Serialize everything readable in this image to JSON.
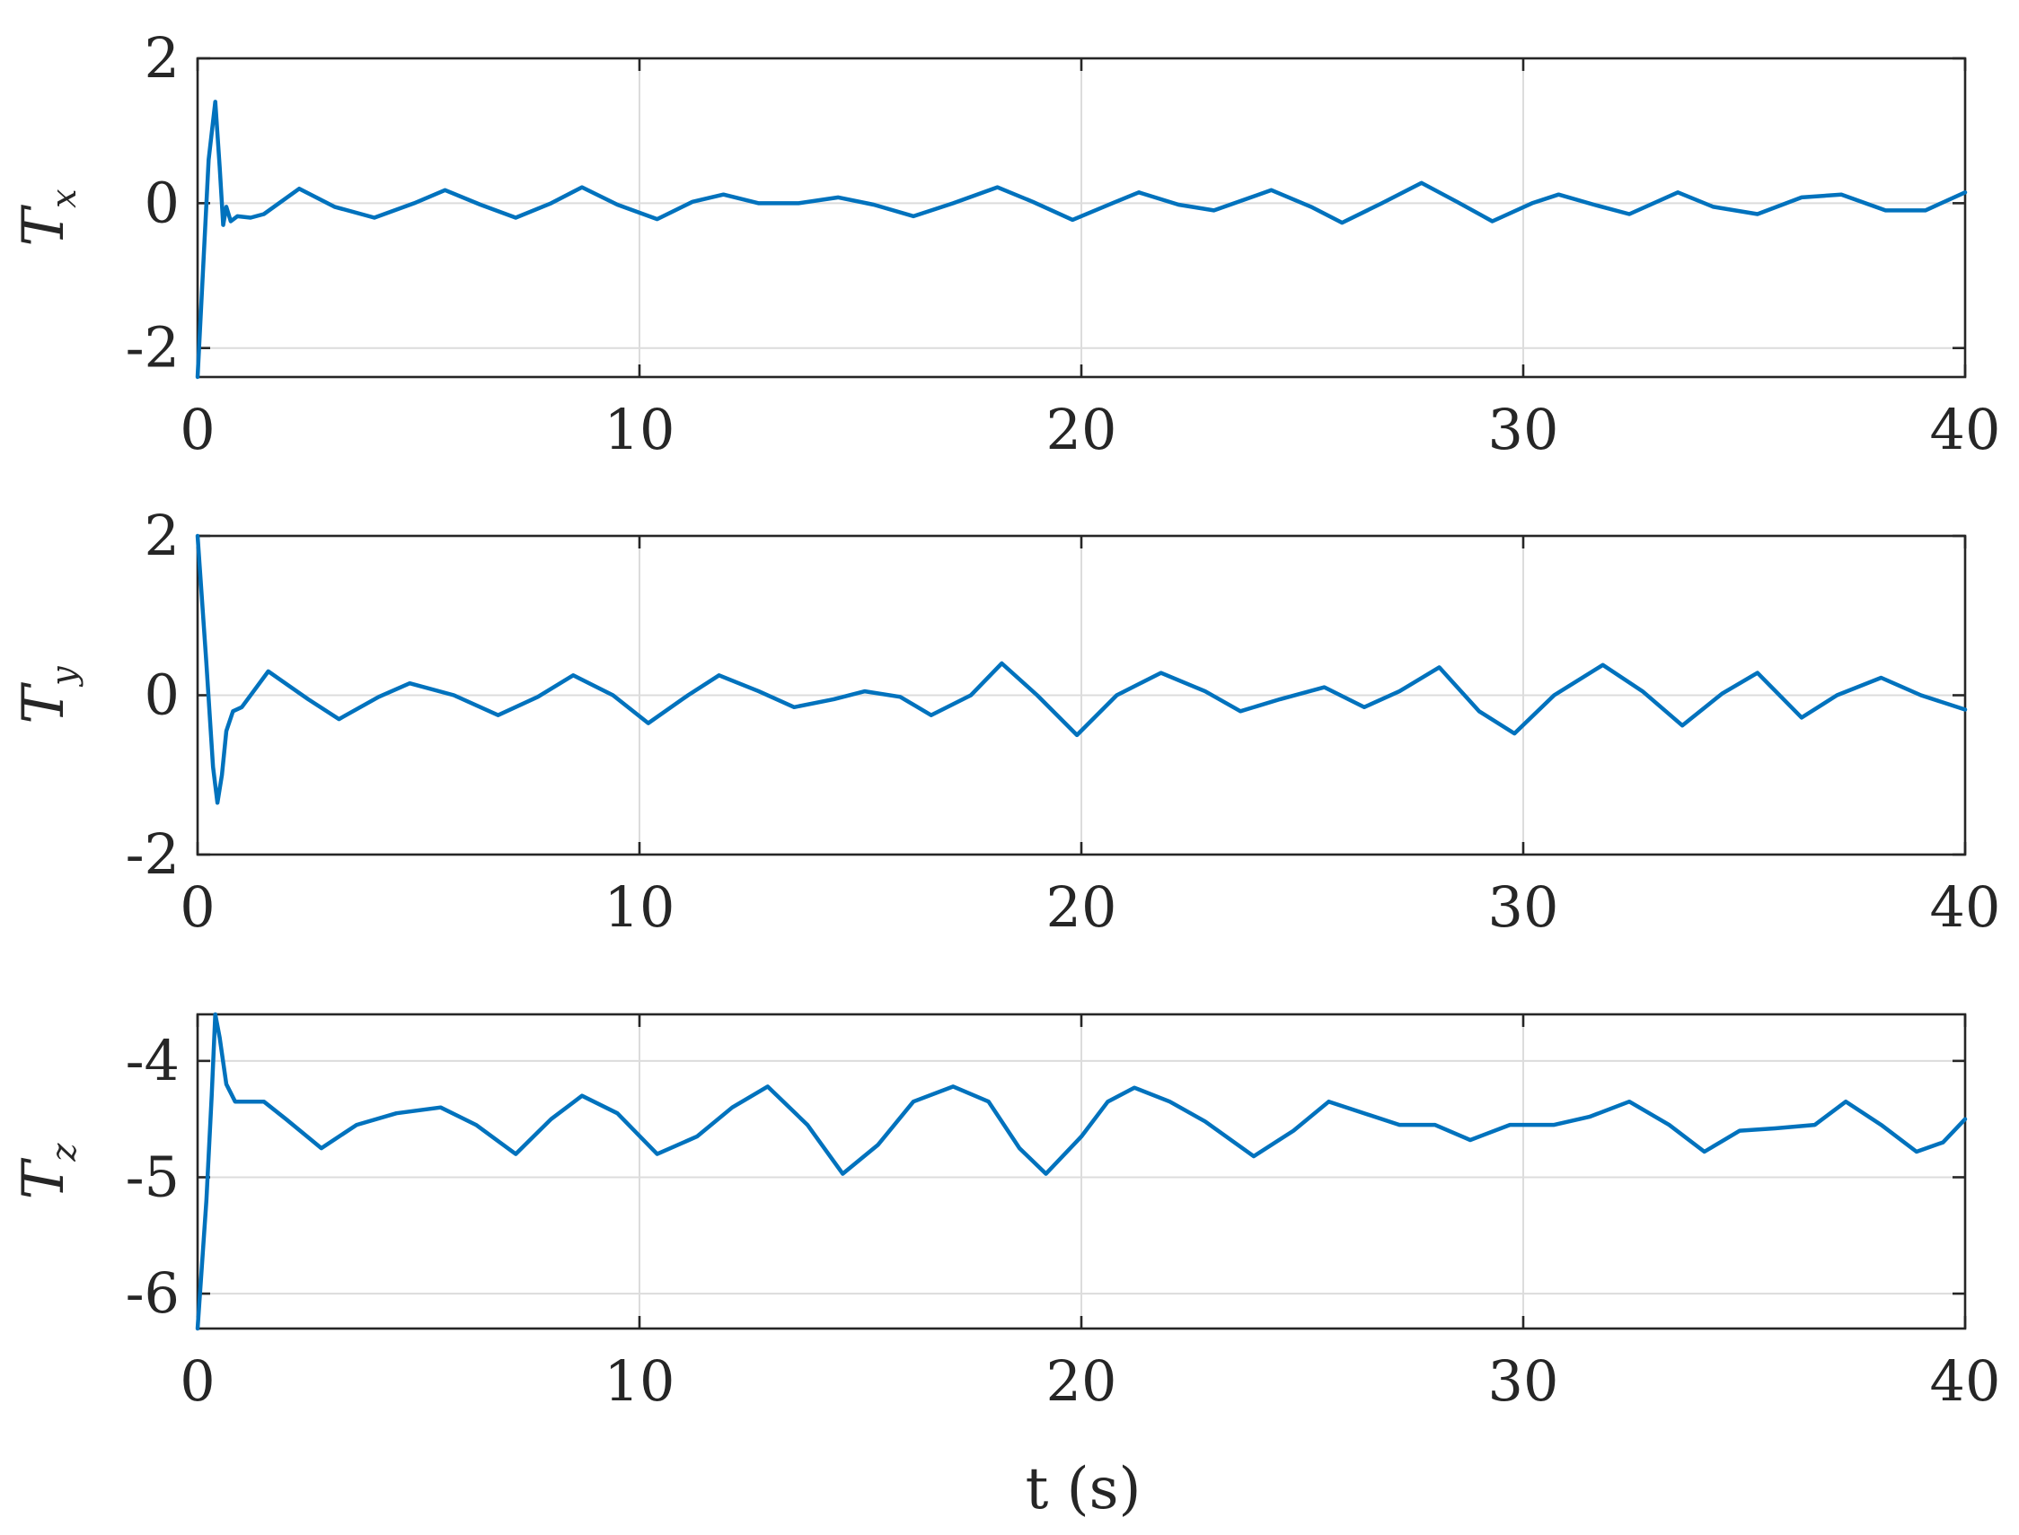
{
  "colors": {
    "series": "#0072bd",
    "axis": "#262626",
    "grid": "#dcdcdc"
  },
  "chart_data": [
    {
      "type": "line",
      "ylabel": {
        "main": "T",
        "sub": "x"
      },
      "xlabel": "",
      "xlim": [
        0,
        40
      ],
      "ylim": [
        -2.4,
        2
      ],
      "xticks": [
        0,
        10,
        20,
        30,
        40
      ],
      "xtick_labels": [
        "0",
        "10",
        "20",
        "30",
        "40"
      ],
      "yticks": [
        -2,
        0,
        2
      ],
      "ytick_labels": [
        "-2",
        "0",
        "2"
      ],
      "grid": true,
      "series": [
        {
          "x": [
            0,
            0.25,
            0.4,
            0.5,
            0.58,
            0.65,
            0.75,
            0.9,
            1.2,
            1.5,
            2.3,
            3.1,
            4.0,
            4.9,
            5.6,
            6.4,
            7.2,
            8.0,
            8.7,
            9.5,
            10.4,
            11.2,
            11.9,
            12.7,
            13.6,
            14.5,
            15.3,
            16.2,
            17.1,
            18.1,
            18.9,
            19.8,
            20.7,
            21.3,
            22.2,
            23.0,
            24.3,
            25.2,
            25.9,
            26.8,
            27.7,
            28.5,
            29.3,
            30.2,
            30.8,
            31.6,
            32.4,
            33.5,
            34.3,
            35.3,
            36.3,
            37.2,
            38.2,
            39.1,
            40.0
          ],
          "y": [
            -2.4,
            0.6,
            1.4,
            0.5,
            -0.3,
            -0.05,
            -0.25,
            -0.18,
            -0.2,
            -0.15,
            0.2,
            -0.05,
            -0.2,
            0.0,
            0.18,
            -0.02,
            -0.2,
            0.0,
            0.22,
            -0.02,
            -0.22,
            0.02,
            0.12,
            0.0,
            0.0,
            0.08,
            -0.02,
            -0.18,
            0.0,
            0.22,
            0.02,
            -0.23,
            0.0,
            0.15,
            -0.02,
            -0.1,
            0.18,
            -0.05,
            -0.27,
            0.0,
            0.28,
            0.02,
            -0.25,
            0.0,
            0.12,
            -0.02,
            -0.15,
            0.15,
            -0.05,
            -0.15,
            0.08,
            0.12,
            -0.1,
            -0.1,
            0.15
          ]
        }
      ]
    },
    {
      "type": "line",
      "ylabel": {
        "main": "T",
        "sub": "y"
      },
      "xlabel": "",
      "xlim": [
        0,
        40
      ],
      "ylim": [
        -2,
        2
      ],
      "xticks": [
        0,
        10,
        20,
        30,
        40
      ],
      "xtick_labels": [
        "0",
        "10",
        "20",
        "30",
        "40"
      ],
      "yticks": [
        -2,
        0,
        2
      ],
      "ytick_labels": [
        "-2",
        "0",
        "2"
      ],
      "grid": true,
      "series": [
        {
          "x": [
            0,
            0.2,
            0.35,
            0.45,
            0.55,
            0.65,
            0.8,
            1.0,
            1.6,
            2.5,
            3.2,
            4.1,
            4.8,
            5.8,
            6.8,
            7.7,
            8.5,
            9.4,
            10.2,
            11.1,
            11.8,
            12.7,
            13.5,
            14.4,
            15.1,
            15.9,
            16.6,
            17.5,
            18.2,
            19.0,
            19.9,
            20.8,
            21.8,
            22.8,
            23.6,
            24.5,
            25.5,
            26.4,
            27.2,
            28.1,
            29.0,
            29.8,
            30.7,
            31.8,
            32.7,
            33.6,
            34.5,
            35.3,
            36.3,
            37.1,
            38.1,
            39.0,
            40.0
          ],
          "y": [
            2.0,
            0.4,
            -0.9,
            -1.35,
            -1.0,
            -0.45,
            -0.2,
            -0.15,
            0.3,
            -0.05,
            -0.3,
            -0.02,
            0.15,
            0.0,
            -0.25,
            -0.02,
            0.25,
            0.0,
            -0.35,
            0.0,
            0.25,
            0.05,
            -0.15,
            -0.05,
            0.05,
            -0.02,
            -0.25,
            0.0,
            0.4,
            0.0,
            -0.5,
            0.0,
            0.28,
            0.05,
            -0.2,
            -0.05,
            0.1,
            -0.15,
            0.05,
            0.35,
            -0.2,
            -0.48,
            0.0,
            0.38,
            0.05,
            -0.38,
            0.02,
            0.28,
            -0.28,
            0.0,
            0.22,
            0.0,
            -0.18
          ]
        }
      ]
    },
    {
      "type": "line",
      "ylabel": {
        "main": "T",
        "sub": "z"
      },
      "xlabel": "t (s)",
      "xlim": [
        0,
        40
      ],
      "ylim": [
        -6.3,
        -3.6
      ],
      "xticks": [
        0,
        10,
        20,
        30,
        40
      ],
      "xtick_labels": [
        "0",
        "10",
        "20",
        "30",
        "40"
      ],
      "yticks": [
        -6,
        -5,
        -4
      ],
      "ytick_labels": [
        "-6",
        "-5",
        "-4"
      ],
      "grid": true,
      "series": [
        {
          "x": [
            0,
            0.2,
            0.32,
            0.4,
            0.5,
            0.65,
            0.85,
            1.1,
            1.5,
            2.0,
            2.8,
            3.6,
            4.5,
            5.5,
            6.3,
            7.2,
            8.0,
            8.7,
            9.5,
            10.4,
            11.3,
            12.1,
            12.9,
            13.8,
            14.6,
            15.4,
            16.2,
            17.1,
            17.9,
            18.6,
            19.2,
            20.0,
            20.6,
            21.2,
            22.0,
            22.8,
            23.9,
            24.8,
            25.6,
            26.4,
            27.2,
            28.0,
            28.8,
            29.7,
            30.7,
            31.5,
            32.4,
            33.3,
            34.1,
            34.9,
            35.7,
            36.6,
            37.3,
            38.1,
            38.9,
            39.5,
            40.0
          ],
          "y": [
            -6.3,
            -5.2,
            -4.3,
            -3.6,
            -3.8,
            -4.2,
            -4.35,
            -4.35,
            -4.35,
            -4.5,
            -4.75,
            -4.55,
            -4.45,
            -4.4,
            -4.55,
            -4.8,
            -4.5,
            -4.3,
            -4.45,
            -4.8,
            -4.65,
            -4.4,
            -4.22,
            -4.55,
            -4.97,
            -4.72,
            -4.35,
            -4.22,
            -4.35,
            -4.75,
            -4.97,
            -4.65,
            -4.35,
            -4.23,
            -4.35,
            -4.52,
            -4.82,
            -4.6,
            -4.35,
            -4.45,
            -4.55,
            -4.55,
            -4.68,
            -4.55,
            -4.55,
            -4.48,
            -4.35,
            -4.55,
            -4.78,
            -4.6,
            -4.58,
            -4.55,
            -4.35,
            -4.55,
            -4.78,
            -4.7,
            -4.5
          ]
        }
      ]
    }
  ]
}
